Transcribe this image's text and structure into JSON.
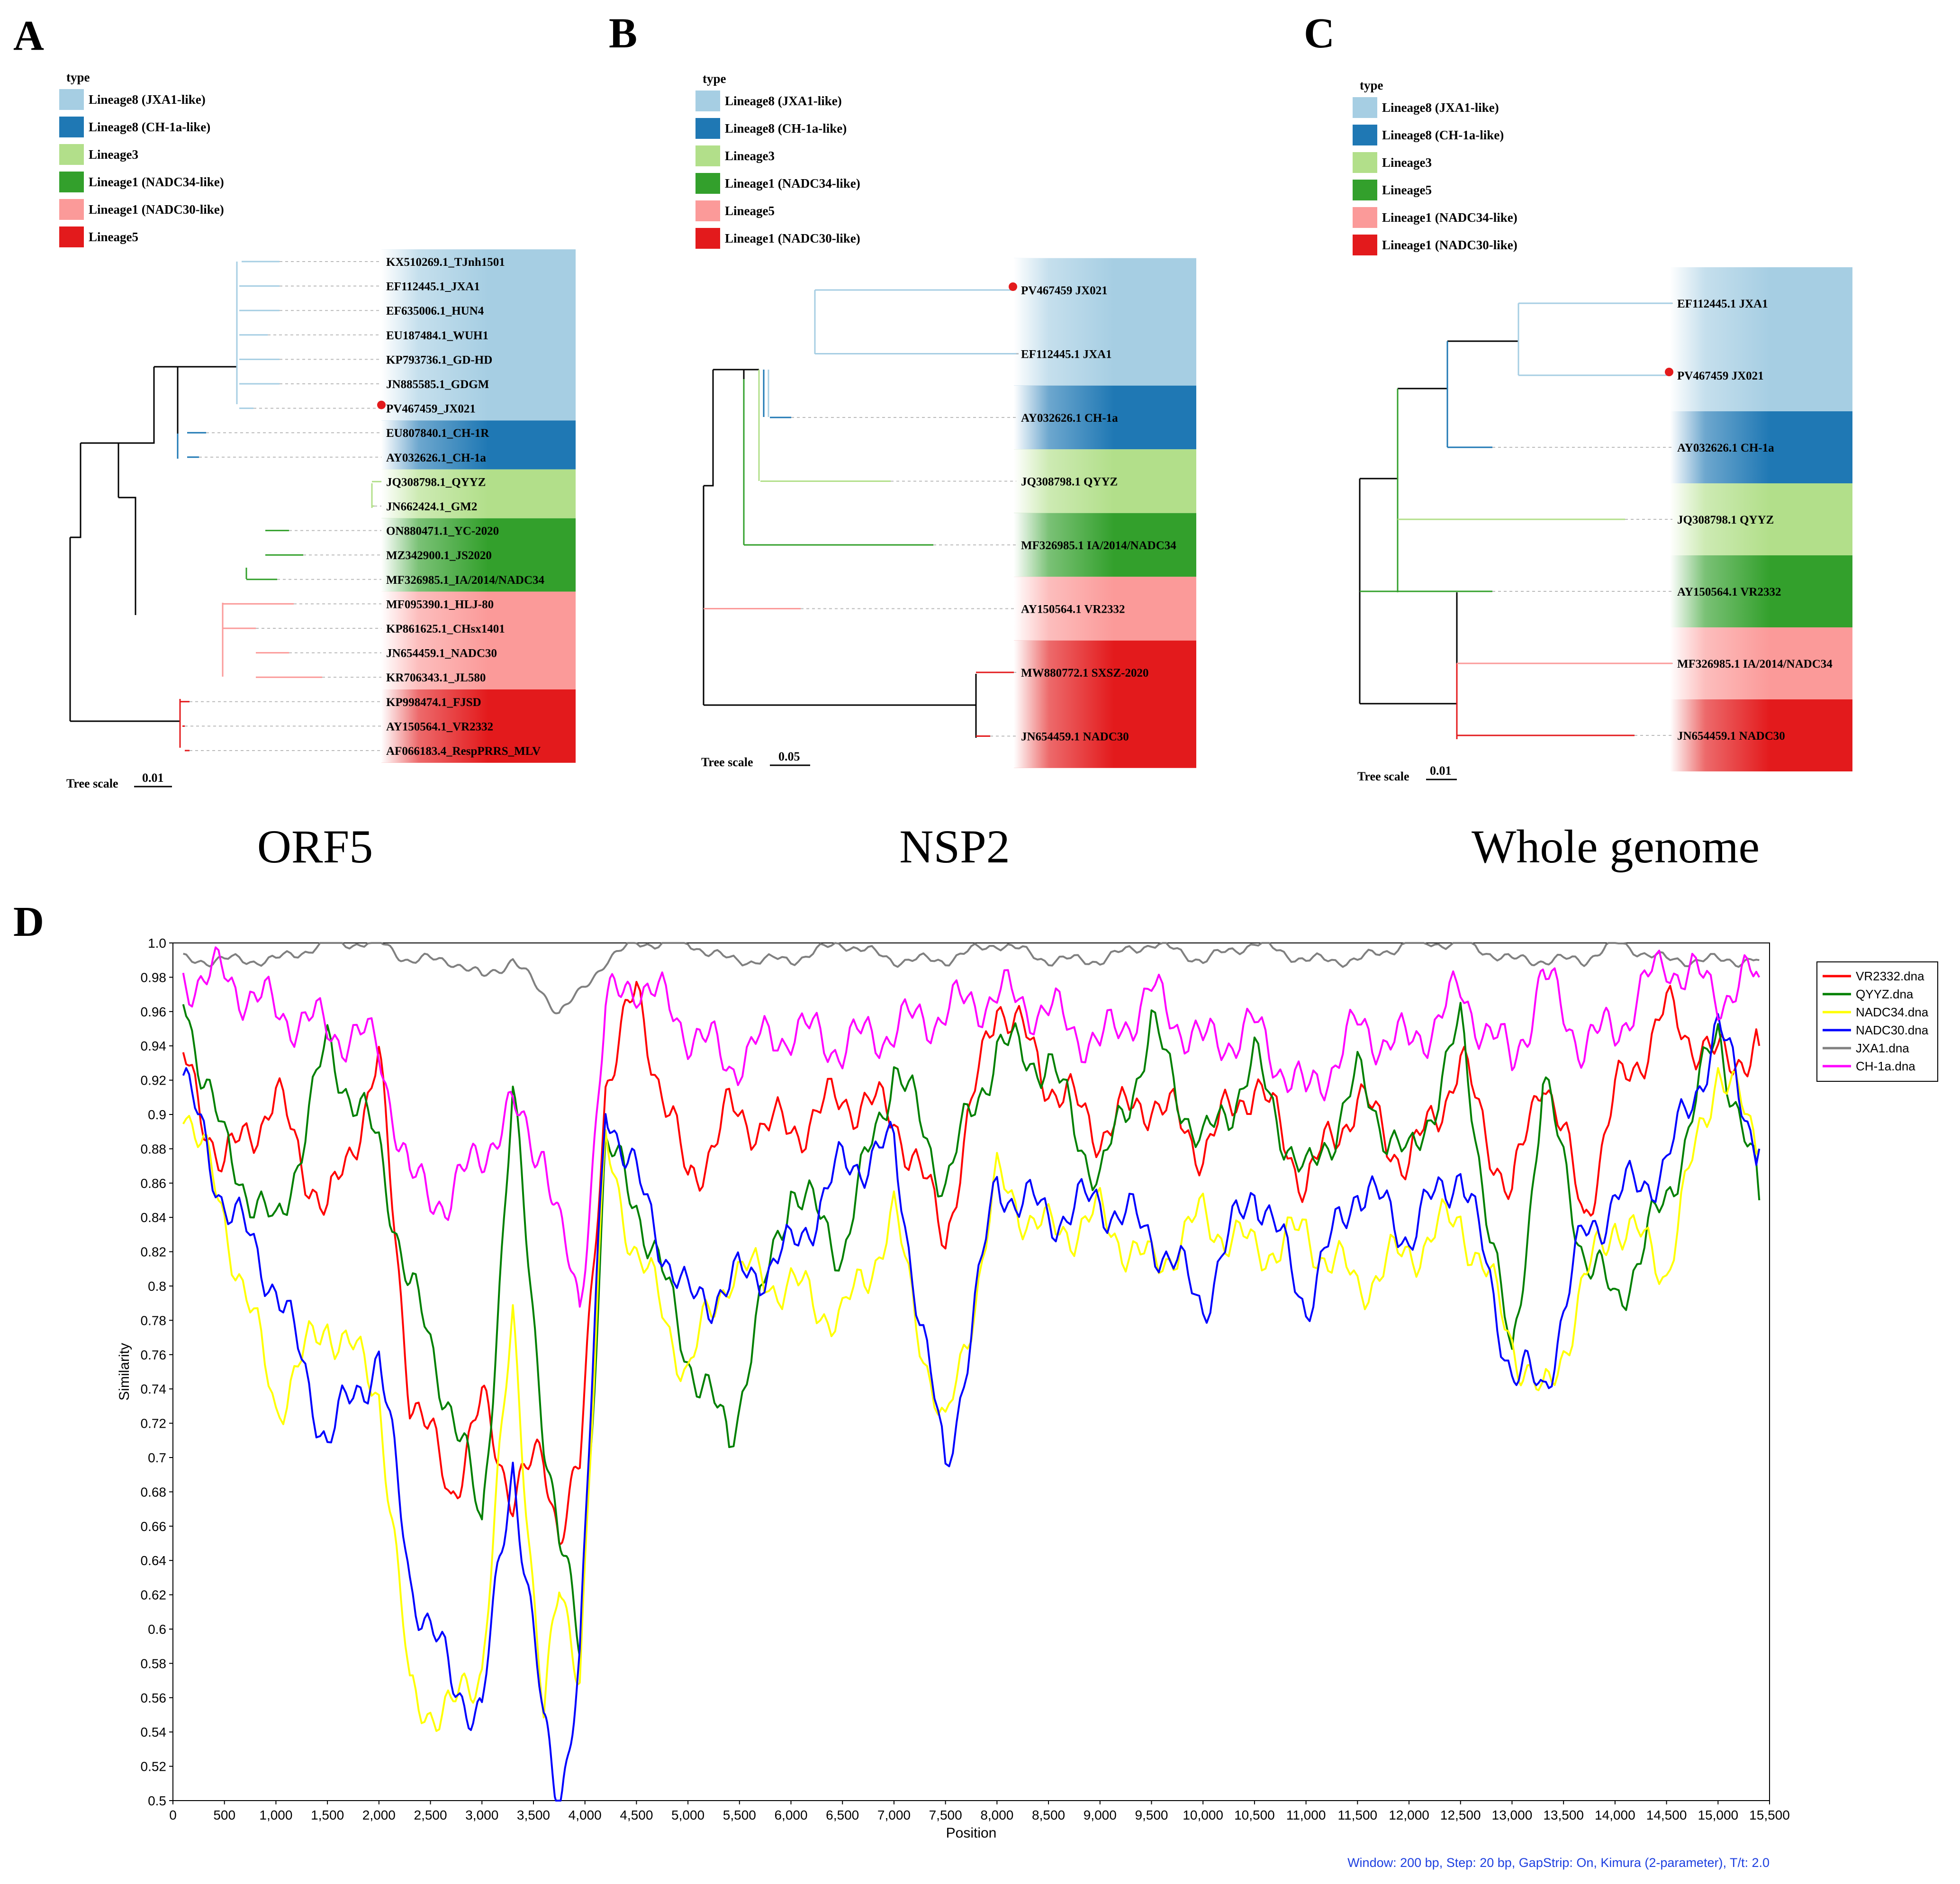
{
  "figure": {
    "panel_labels": [
      "A",
      "B",
      "C",
      "D"
    ],
    "tree_scale_label": "Tree scale",
    "legend_title": "type",
    "query_label": "PV467459_JX021",
    "colors": {
      "light_blue": "#a6cee3",
      "dark_blue": "#1f78b4",
      "light_green": "#b2df8a",
      "dark_green": "#33a02c",
      "pink": "#fb9a99",
      "red": "#e31a1c",
      "query_dot": "#e31a1c"
    }
  },
  "trees": [
    {
      "id": "A",
      "caption": "ORF5",
      "scale": "0.01",
      "legend": [
        {
          "label": "Lineage8 (JXA1-like)",
          "color": "#a6cee3"
        },
        {
          "label": "Lineage8 (CH-1a-like)",
          "color": "#1f78b4"
        },
        {
          "label": "Lineage3",
          "color": "#b2df8a"
        },
        {
          "label": "Lineage1 (NADC34-like)",
          "color": "#33a02c"
        },
        {
          "label": "Lineage1 (NADC30-like)",
          "color": "#fb9a99"
        },
        {
          "label": "Lineage5",
          "color": "#e31a1c"
        }
      ],
      "leaves": [
        {
          "label": "KX510269.1_TJnh1501",
          "group": 0
        },
        {
          "label": "EF112445.1_JXA1",
          "group": 0
        },
        {
          "label": "EF635006.1_HUN4",
          "group": 0
        },
        {
          "label": "EU187484.1_WUH1",
          "group": 0
        },
        {
          "label": "KP793736.1_GD-HD",
          "group": 0
        },
        {
          "label": "JN885585.1_GDGM",
          "group": 0
        },
        {
          "label": "PV467459_JX021",
          "group": 0,
          "query": true
        },
        {
          "label": "EU807840.1_CH-1R",
          "group": 1
        },
        {
          "label": "AY032626.1_CH-1a",
          "group": 1
        },
        {
          "label": "JQ308798.1_QYYZ",
          "group": 2
        },
        {
          "label": "JN662424.1_GM2",
          "group": 2
        },
        {
          "label": "ON880471.1_YC-2020",
          "group": 3
        },
        {
          "label": "MZ342900.1_JS2020",
          "group": 3
        },
        {
          "label": "MF326985.1_IA/2014/NADC34",
          "group": 3
        },
        {
          "label": "MF095390.1_HLJ-80",
          "group": 4
        },
        {
          "label": "KP861625.1_CHsx1401",
          "group": 4
        },
        {
          "label": "JN654459.1_NADC30",
          "group": 4
        },
        {
          "label": "KR706343.1_JL580",
          "group": 4
        },
        {
          "label": "KP998474.1_FJSD",
          "group": 5
        },
        {
          "label": "AY150564.1_VR2332",
          "group": 5
        },
        {
          "label": "AF066183.4_RespPRRS_MLV",
          "group": 5
        }
      ]
    },
    {
      "id": "B",
      "caption": "NSP2",
      "scale": "0.05",
      "legend": [
        {
          "label": "Lineage8 (JXA1-like)",
          "color": "#a6cee3"
        },
        {
          "label": "Lineage8 (CH-1a-like)",
          "color": "#1f78b4"
        },
        {
          "label": "Lineage3",
          "color": "#b2df8a"
        },
        {
          "label": "Lineage1 (NADC34-like)",
          "color": "#33a02c"
        },
        {
          "label": "Lineage5",
          "color": "#fb9a99"
        },
        {
          "label": "Lineage1 (NADC30-like)",
          "color": "#e31a1c"
        }
      ],
      "leaves": [
        {
          "label": "PV467459 JX021",
          "group": 0,
          "query": true
        },
        {
          "label": "EF112445.1 JXA1",
          "group": 0
        },
        {
          "label": "AY032626.1 CH-1a",
          "group": 1
        },
        {
          "label": "JQ308798.1 QYYZ",
          "group": 2
        },
        {
          "label": "MF326985.1 IA/2014/NADC34",
          "group": 3
        },
        {
          "label": "AY150564.1 VR2332",
          "group": 4
        },
        {
          "label": "MW880772.1 SXSZ-2020",
          "group": 5
        },
        {
          "label": "JN654459.1 NADC30",
          "group": 5
        }
      ]
    },
    {
      "id": "C",
      "caption": "Whole genome",
      "scale": "0.01",
      "legend": [
        {
          "label": "Lineage8 (JXA1-like)",
          "color": "#a6cee3"
        },
        {
          "label": "Lineage8 (CH-1a-like)",
          "color": "#1f78b4"
        },
        {
          "label": "Lineage3",
          "color": "#b2df8a"
        },
        {
          "label": "Lineage5",
          "color": "#33a02c"
        },
        {
          "label": "Lineage1 (NADC34-like)",
          "color": "#fb9a99"
        },
        {
          "label": "Lineage1 (NADC30-like)",
          "color": "#e31a1c"
        }
      ],
      "leaves": [
        {
          "label": "EF112445.1 JXA1",
          "group": 0
        },
        {
          "label": "PV467459 JX021",
          "group": 0,
          "query": true
        },
        {
          "label": "AY032626.1 CH-1a",
          "group": 1
        },
        {
          "label": "JQ308798.1 QYYZ",
          "group": 2
        },
        {
          "label": "AY150564.1 VR2332",
          "group": 3
        },
        {
          "label": "MF326985.1 IA/2014/NADC34",
          "group": 4
        },
        {
          "label": "JN654459.1 NADC30",
          "group": 5
        }
      ]
    }
  ],
  "chart_data": {
    "type": "line",
    "title": "",
    "xlabel": "Position",
    "ylabel": "Similarity",
    "xlim": [
      0,
      15500
    ],
    "ylim": [
      0.5,
      1.0
    ],
    "x_ticks": [
      "0",
      "500",
      "1,000",
      "1,500",
      "2,000",
      "2,500",
      "3,000",
      "3,500",
      "4,000",
      "4,500",
      "5,000",
      "5,500",
      "6,000",
      "6,500",
      "7,000",
      "7,500",
      "8,000",
      "8,500",
      "9,000",
      "9,500",
      "10,000",
      "10,500",
      "11,000",
      "11,500",
      "12,000",
      "12,500",
      "13,000",
      "13,500",
      "14,000",
      "14,500",
      "15,000",
      "15,500"
    ],
    "y_ticks": [
      "0.5",
      "0.52",
      "0.54",
      "0.56",
      "0.58",
      "0.6",
      "0.62",
      "0.64",
      "0.66",
      "0.68",
      "0.7",
      "0.72",
      "0.74",
      "0.76",
      "0.78",
      "0.8",
      "0.82",
      "0.84",
      "0.86",
      "0.88",
      "0.9",
      "0.92",
      "0.94",
      "0.96",
      "0.98",
      "1.0"
    ],
    "footer": "Window: 200 bp, Step: 20 bp, GapStrip: On, Kimura (2-parameter), T/t: 2.0",
    "x": [
      100,
      500,
      1000,
      1500,
      2000,
      2300,
      2700,
      3000,
      3300,
      3600,
      3750,
      3950,
      4200,
      4500,
      5000,
      5400,
      6000,
      6500,
      7000,
      7500,
      8000,
      8500,
      9000,
      9500,
      10000,
      10500,
      11000,
      11500,
      12000,
      12500,
      13000,
      13300,
      13700,
      14000,
      14500,
      15000,
      15400
    ],
    "series": [
      {
        "name": "VR2332.dna",
        "color": "#ff0000",
        "values": [
          0.93,
          0.87,
          0.91,
          0.84,
          0.93,
          0.74,
          0.68,
          0.73,
          0.68,
          0.7,
          0.66,
          0.69,
          0.92,
          0.97,
          0.86,
          0.9,
          0.89,
          0.91,
          0.9,
          0.83,
          0.97,
          0.92,
          0.89,
          0.91,
          0.88,
          0.92,
          0.86,
          0.91,
          0.87,
          0.93,
          0.85,
          0.93,
          0.84,
          0.91,
          0.96,
          0.93,
          0.94
        ]
      },
      {
        "name": "QYYZ.dna",
        "color": "#008000",
        "values": [
          0.97,
          0.88,
          0.83,
          0.94,
          0.88,
          0.8,
          0.73,
          0.66,
          0.91,
          0.72,
          0.65,
          0.59,
          0.88,
          0.85,
          0.76,
          0.71,
          0.86,
          0.82,
          0.93,
          0.86,
          0.94,
          0.93,
          0.86,
          0.95,
          0.88,
          0.93,
          0.86,
          0.92,
          0.87,
          0.95,
          0.75,
          0.92,
          0.82,
          0.79,
          0.85,
          0.95,
          0.85
        ]
      },
      {
        "name": "NADC34.dna",
        "color": "#ffff00",
        "values": [
          0.91,
          0.84,
          0.73,
          0.78,
          0.74,
          0.56,
          0.55,
          0.58,
          0.78,
          0.55,
          0.62,
          0.58,
          0.88,
          0.82,
          0.75,
          0.81,
          0.8,
          0.78,
          0.84,
          0.71,
          0.86,
          0.83,
          0.84,
          0.81,
          0.84,
          0.82,
          0.83,
          0.8,
          0.82,
          0.84,
          0.77,
          0.73,
          0.8,
          0.84,
          0.81,
          0.93,
          0.88
        ]
      },
      {
        "name": "NADC30.dna",
        "color": "#0000ff",
        "values": [
          0.92,
          0.85,
          0.8,
          0.71,
          0.76,
          0.63,
          0.57,
          0.55,
          0.7,
          0.54,
          0.5,
          0.58,
          0.91,
          0.86,
          0.79,
          0.8,
          0.82,
          0.87,
          0.88,
          0.69,
          0.86,
          0.84,
          0.85,
          0.83,
          0.79,
          0.86,
          0.79,
          0.86,
          0.83,
          0.87,
          0.75,
          0.74,
          0.83,
          0.85,
          0.87,
          0.95,
          0.88
        ]
      },
      {
        "name": "JXA1.dna",
        "color": "#808080",
        "values": [
          0.99,
          0.99,
          0.99,
          1.0,
          1.0,
          0.99,
          0.99,
          0.98,
          0.99,
          0.97,
          0.96,
          0.97,
          0.99,
          1.0,
          1.0,
          0.99,
          0.99,
          1.0,
          0.99,
          0.99,
          1.0,
          0.99,
          0.99,
          1.0,
          0.99,
          1.0,
          0.99,
          0.99,
          1.0,
          1.0,
          0.99,
          0.99,
          0.99,
          1.0,
          0.99,
          0.99,
          0.99
        ]
      },
      {
        "name": "CH-1a.dna",
        "color": "#ff00ff",
        "values": [
          0.98,
          0.98,
          0.96,
          0.95,
          0.94,
          0.86,
          0.85,
          0.88,
          0.9,
          0.88,
          0.83,
          0.79,
          0.96,
          0.98,
          0.95,
          0.93,
          0.95,
          0.94,
          0.95,
          0.96,
          0.97,
          0.96,
          0.94,
          0.97,
          0.94,
          0.95,
          0.91,
          0.95,
          0.94,
          0.97,
          0.93,
          0.98,
          0.94,
          0.95,
          0.99,
          0.97,
          0.98
        ]
      }
    ]
  }
}
